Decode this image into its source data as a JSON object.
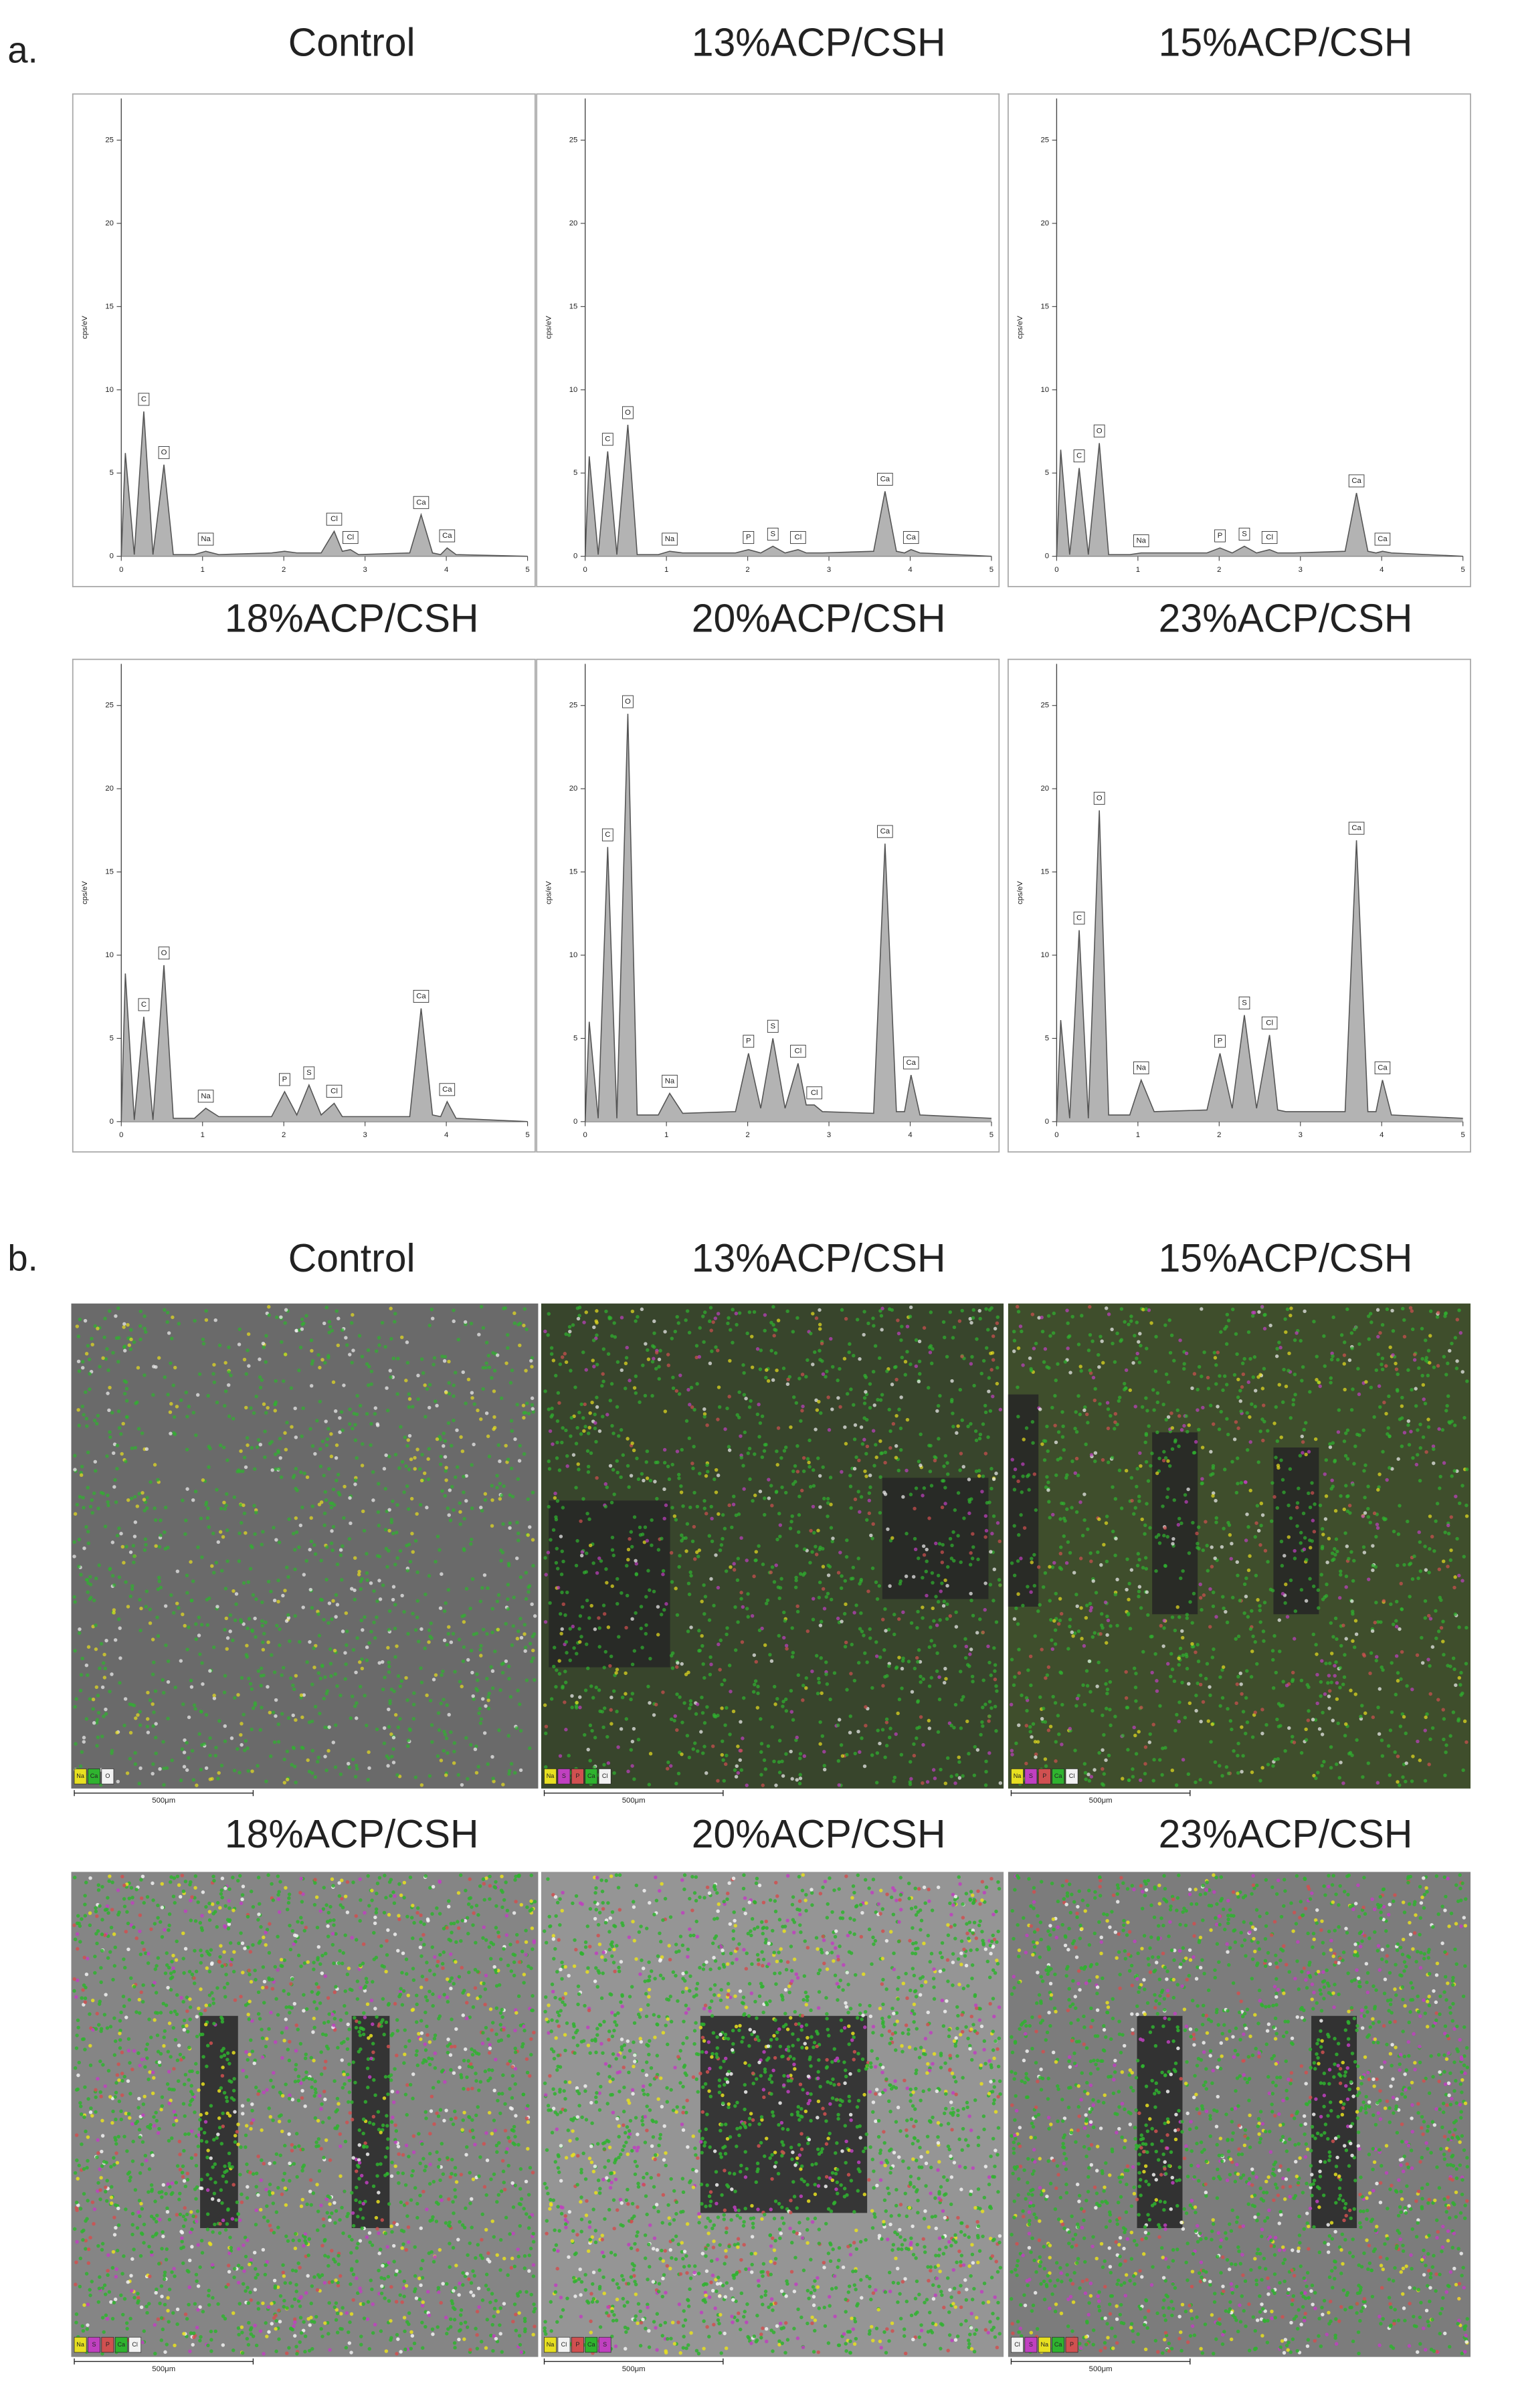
{
  "panel_labels": [
    "a.",
    "b."
  ],
  "chart_data": [
    {
      "type": "area",
      "title": "Control",
      "y_label": "cps/eV",
      "color": "#b3b3b3",
      "xlim": [
        0,
        5
      ],
      "xticks": [
        0,
        1,
        2,
        3,
        4,
        5
      ],
      "ylim": [
        0,
        27.5
      ],
      "yticks": [
        0,
        5,
        10,
        15,
        20,
        25
      ],
      "x": [
        0,
        0.05,
        0.16,
        0.277,
        0.39,
        0.525,
        0.64,
        0.9,
        1.04,
        1.2,
        1.85,
        2.01,
        2.16,
        2.31,
        2.46,
        2.62,
        2.72,
        2.82,
        2.92,
        3.55,
        3.69,
        3.83,
        3.93,
        4.01,
        4.12,
        5
      ],
      "values": [
        0,
        6.2,
        0.1,
        8.7,
        0.1,
        5.5,
        0.1,
        0.1,
        0.3,
        0.1,
        0.2,
        0.3,
        0.2,
        0.2,
        0.2,
        1.5,
        0.3,
        0.4,
        0.1,
        0.2,
        2.5,
        0.2,
        0.1,
        0.5,
        0.1,
        0
      ],
      "peak_labels": [
        null,
        null,
        null,
        "C",
        null,
        "O",
        null,
        null,
        "Na",
        null,
        null,
        null,
        null,
        null,
        null,
        "Cl",
        null,
        "Cl",
        null,
        null,
        "Ca",
        null,
        null,
        "Ca",
        null,
        null
      ]
    },
    {
      "type": "area",
      "title": "13%ACP/CSH",
      "y_label": "cps/eV",
      "color": "#b3b3b3",
      "xlim": [
        0,
        5
      ],
      "xticks": [
        0,
        1,
        2,
        3,
        4,
        5
      ],
      "ylim": [
        0,
        27.5
      ],
      "yticks": [
        0,
        5,
        10,
        15,
        20,
        25
      ],
      "x": [
        0,
        0.05,
        0.16,
        0.277,
        0.39,
        0.525,
        0.64,
        0.9,
        1.04,
        1.2,
        1.85,
        2.01,
        2.16,
        2.31,
        2.46,
        2.62,
        2.72,
        2.82,
        2.92,
        3.55,
        3.69,
        3.83,
        3.93,
        4.01,
        4.12,
        5
      ],
      "values": [
        0,
        6,
        0.1,
        6.3,
        0.1,
        7.9,
        0.1,
        0.1,
        0.3,
        0.2,
        0.2,
        0.4,
        0.2,
        0.6,
        0.2,
        0.4,
        0.2,
        0.2,
        0.2,
        0.3,
        3.9,
        0.3,
        0.2,
        0.4,
        0.2,
        0
      ],
      "peak_labels": [
        null,
        null,
        null,
        "C",
        null,
        "O",
        null,
        null,
        "Na",
        null,
        null,
        "P",
        null,
        "S",
        null,
        "Cl",
        null,
        null,
        null,
        null,
        "Ca",
        null,
        null,
        "Ca",
        null,
        null
      ]
    },
    {
      "type": "area",
      "title": "15%ACP/CSH",
      "y_label": "cps/eV",
      "color": "#b3b3b3",
      "xlim": [
        0,
        5
      ],
      "xticks": [
        0,
        1,
        2,
        3,
        4,
        5
      ],
      "ylim": [
        0,
        27.5
      ],
      "yticks": [
        0,
        5,
        10,
        15,
        20,
        25
      ],
      "x": [
        0,
        0.05,
        0.16,
        0.277,
        0.39,
        0.525,
        0.64,
        0.9,
        1.04,
        1.2,
        1.85,
        2.01,
        2.16,
        2.31,
        2.46,
        2.62,
        2.72,
        2.82,
        2.92,
        3.55,
        3.69,
        3.83,
        3.93,
        4.01,
        4.12,
        5
      ],
      "values": [
        0,
        6.4,
        0.1,
        5.3,
        0.1,
        6.8,
        0.1,
        0.1,
        0.2,
        0.2,
        0.2,
        0.5,
        0.2,
        0.6,
        0.2,
        0.4,
        0.2,
        0.2,
        0.2,
        0.3,
        3.8,
        0.3,
        0.2,
        0.3,
        0.2,
        0
      ],
      "peak_labels": [
        null,
        null,
        null,
        "C",
        null,
        "O",
        null,
        null,
        "Na",
        null,
        null,
        "P",
        null,
        "S",
        null,
        "Cl",
        null,
        null,
        null,
        null,
        "Ca",
        null,
        null,
        "Ca",
        null,
        null
      ]
    },
    {
      "type": "area",
      "title": "18%ACP/CSH",
      "y_label": "cps/eV",
      "color": "#b3b3b3",
      "xlim": [
        0,
        5
      ],
      "xticks": [
        0,
        1,
        2,
        3,
        4,
        5
      ],
      "ylim": [
        0,
        27.5
      ],
      "yticks": [
        0,
        5,
        10,
        15,
        20,
        25
      ],
      "x": [
        0,
        0.05,
        0.16,
        0.277,
        0.39,
        0.525,
        0.64,
        0.9,
        1.04,
        1.2,
        1.85,
        2.01,
        2.16,
        2.31,
        2.46,
        2.62,
        2.72,
        2.82,
        2.92,
        3.55,
        3.69,
        3.83,
        3.93,
        4.01,
        4.12,
        5
      ],
      "values": [
        0,
        8.9,
        0.1,
        6.3,
        0.1,
        9.4,
        0.2,
        0.2,
        0.8,
        0.3,
        0.3,
        1.8,
        0.4,
        2.2,
        0.4,
        1.1,
        0.3,
        0.3,
        0.3,
        0.3,
        6.8,
        0.4,
        0.3,
        1.2,
        0.2,
        0
      ],
      "peak_labels": [
        null,
        null,
        null,
        "C",
        null,
        "O",
        null,
        null,
        "Na",
        null,
        null,
        "P",
        null,
        "S",
        null,
        "Cl",
        null,
        null,
        null,
        null,
        "Ca",
        null,
        null,
        "Ca",
        null,
        null
      ]
    },
    {
      "type": "area",
      "title": "20%ACP/CSH",
      "y_label": "cps/eV",
      "color": "#b3b3b3",
      "xlim": [
        0,
        5
      ],
      "xticks": [
        0,
        1,
        2,
        3,
        4,
        5
      ],
      "ylim": [
        0,
        27.5
      ],
      "yticks": [
        0,
        5,
        10,
        15,
        20,
        25
      ],
      "x": [
        0,
        0.05,
        0.16,
        0.277,
        0.39,
        0.525,
        0.64,
        0.9,
        1.04,
        1.2,
        1.85,
        2.01,
        2.16,
        2.31,
        2.46,
        2.62,
        2.72,
        2.82,
        2.92,
        3.55,
        3.69,
        3.83,
        3.93,
        4.01,
        4.12,
        5
      ],
      "values": [
        0,
        6,
        0.2,
        16.5,
        0.2,
        24.5,
        0.4,
        0.4,
        1.7,
        0.5,
        0.6,
        4.1,
        0.8,
        5,
        0.8,
        3.5,
        1,
        1,
        0.6,
        0.5,
        16.7,
        0.6,
        0.6,
        2.8,
        0.4,
        0.2
      ],
      "peak_labels": [
        null,
        null,
        null,
        "C",
        null,
        "O",
        null,
        null,
        "Na",
        null,
        null,
        "P",
        null,
        "S",
        null,
        "Cl",
        null,
        "Cl",
        null,
        null,
        "Ca",
        null,
        null,
        "Ca",
        null,
        null
      ]
    },
    {
      "type": "area",
      "title": "23%ACP/CSH",
      "y_label": "cps/eV",
      "color": "#b3b3b3",
      "xlim": [
        0,
        5
      ],
      "xticks": [
        0,
        1,
        2,
        3,
        4,
        5
      ],
      "ylim": [
        0,
        27.5
      ],
      "yticks": [
        0,
        5,
        10,
        15,
        20,
        25
      ],
      "x": [
        0,
        0.05,
        0.16,
        0.277,
        0.39,
        0.525,
        0.64,
        0.9,
        1.04,
        1.2,
        1.85,
        2.01,
        2.16,
        2.31,
        2.46,
        2.62,
        2.72,
        2.82,
        2.92,
        3.55,
        3.69,
        3.83,
        3.93,
        4.01,
        4.12,
        5
      ],
      "values": [
        0,
        6.1,
        0.2,
        11.5,
        0.2,
        18.7,
        0.4,
        0.4,
        2.5,
        0.6,
        0.7,
        4.1,
        0.8,
        6.4,
        0.8,
        5.2,
        0.7,
        0.6,
        0.6,
        0.6,
        16.9,
        0.6,
        0.6,
        2.5,
        0.4,
        0.2
      ],
      "peak_labels": [
        null,
        null,
        null,
        "C",
        null,
        "O",
        null,
        null,
        "Na",
        null,
        null,
        "P",
        null,
        "S",
        null,
        "Cl",
        null,
        null,
        null,
        null,
        "Ca",
        null,
        null,
        "Ca",
        null,
        null
      ]
    }
  ],
  "maps": [
    {
      "title": "Control",
      "scale_bar": "500μm",
      "legend": [
        {
          "name": "Na",
          "color": "#e8e020"
        },
        {
          "name": "Ca",
          "color": "#2fb32f"
        },
        {
          "name": "O",
          "color": "#f2f2f2"
        }
      ]
    },
    {
      "title": "13%ACP/CSH",
      "scale_bar": "500μm",
      "legend": [
        {
          "name": "Na",
          "color": "#e8e020"
        },
        {
          "name": "S",
          "color": "#c040c0"
        },
        {
          "name": "P",
          "color": "#d05050"
        },
        {
          "name": "Ca",
          "color": "#2fb32f"
        },
        {
          "name": "Cl",
          "color": "#f2f2f2"
        }
      ]
    },
    {
      "title": "15%ACP/CSH",
      "scale_bar": "500μm",
      "legend": [
        {
          "name": "Na",
          "color": "#e8e020"
        },
        {
          "name": "S",
          "color": "#c040c0"
        },
        {
          "name": "P",
          "color": "#d05050"
        },
        {
          "name": "Ca",
          "color": "#2fb32f"
        },
        {
          "name": "Cl",
          "color": "#f2f2f2"
        }
      ]
    },
    {
      "title": "18%ACP/CSH",
      "scale_bar": "500μm",
      "legend": [
        {
          "name": "Na",
          "color": "#e8e020"
        },
        {
          "name": "S",
          "color": "#c040c0"
        },
        {
          "name": "P",
          "color": "#d05050"
        },
        {
          "name": "Ca",
          "color": "#2fb32f"
        },
        {
          "name": "Cl",
          "color": "#f2f2f2"
        }
      ]
    },
    {
      "title": "20%ACP/CSH",
      "scale_bar": "500μm",
      "legend": [
        {
          "name": "Na",
          "color": "#e8e020"
        },
        {
          "name": "Cl",
          "color": "#f2f2f2"
        },
        {
          "name": "P",
          "color": "#d05050"
        },
        {
          "name": "Ca",
          "color": "#2fb32f"
        },
        {
          "name": "S",
          "color": "#c040c0"
        }
      ]
    },
    {
      "title": "23%ACP/CSH",
      "scale_bar": "500μm",
      "legend": [
        {
          "name": "Cl",
          "color": "#f2f2f2"
        },
        {
          "name": "S",
          "color": "#c040c0"
        },
        {
          "name": "Na",
          "color": "#e8e020"
        },
        {
          "name": "Ca",
          "color": "#2fb32f"
        },
        {
          "name": "P",
          "color": "#d05050"
        }
      ]
    }
  ]
}
